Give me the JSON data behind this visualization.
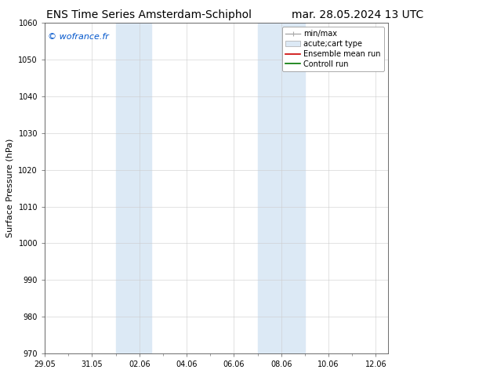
{
  "title_left": "ENS Time Series Amsterdam-Schiphol",
  "title_right": "mar. 28.05.2024 13 UTC",
  "ylabel": "Surface Pressure (hPa)",
  "ylim": [
    970,
    1060
  ],
  "yticks": [
    970,
    980,
    990,
    1000,
    1010,
    1020,
    1030,
    1040,
    1050,
    1060
  ],
  "xlim": [
    0,
    14.5
  ],
  "xtick_labels": [
    "29.05",
    "31.05",
    "02.06",
    "04.06",
    "06.06",
    "08.06",
    "10.06",
    "12.06"
  ],
  "xtick_positions": [
    0,
    2,
    4,
    6,
    8,
    10,
    12,
    14
  ],
  "shaded_bands": [
    {
      "x_start": 3.0,
      "x_end": 4.5,
      "color": "#dce9f5"
    },
    {
      "x_start": 9.0,
      "x_end": 11.0,
      "color": "#dce9f5"
    }
  ],
  "watermark_text": "© wofrance.fr",
  "watermark_color": "#0055cc",
  "legend_entries": [
    {
      "label": "min/max",
      "color": "#aaaaaa",
      "type": "line_with_caps"
    },
    {
      "label": "acute;cart type",
      "color": "#dce9f5",
      "type": "filled_box"
    },
    {
      "label": "Ensemble mean run",
      "color": "#cc0000",
      "type": "line"
    },
    {
      "label": "Controll run",
      "color": "#007700",
      "type": "line"
    }
  ],
  "background_color": "#ffffff",
  "plot_bg_color": "#ffffff",
  "grid_color": "#cccccc",
  "font_size_title": 10,
  "font_size_axis": 8,
  "font_size_legend": 7,
  "font_size_ticks": 7,
  "font_size_watermark": 8
}
